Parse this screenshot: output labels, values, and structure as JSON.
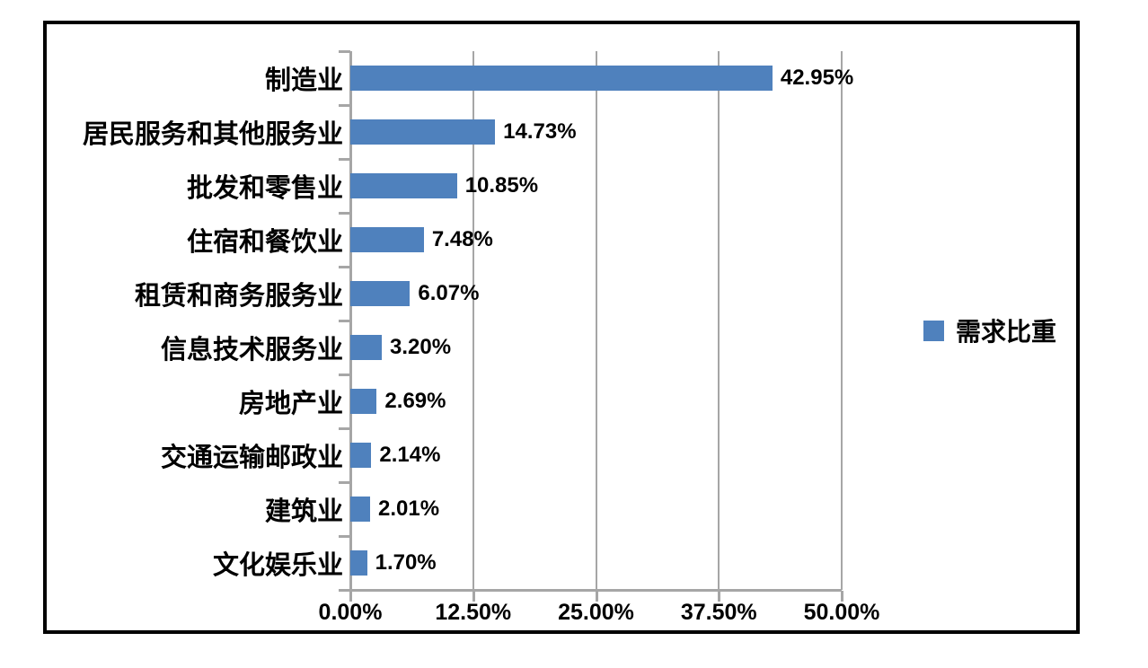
{
  "chart_data": {
    "type": "bar",
    "orientation": "horizontal",
    "title": "",
    "categories": [
      "制造业",
      "居民服务和其他服务业",
      "批发和零售业",
      "住宿和餐饮业",
      "租赁和商务服务业",
      "信息技术服务业",
      "房地产业",
      "交通运输邮政业",
      "建筑业",
      "文化娱乐业"
    ],
    "values": [
      42.95,
      14.73,
      10.85,
      7.48,
      6.07,
      3.2,
      2.69,
      2.14,
      2.01,
      1.7
    ],
    "value_labels": [
      "42.95%",
      "14.73%",
      "10.85%",
      "7.48%",
      "6.07%",
      "3.20%",
      "2.69%",
      "2.14%",
      "2.01%",
      "1.70%"
    ],
    "series": [
      {
        "name": "需求比重",
        "values": [
          42.95,
          14.73,
          10.85,
          7.48,
          6.07,
          3.2,
          2.69,
          2.14,
          2.01,
          1.7
        ]
      }
    ],
    "legend": {
      "label": "需求比重",
      "position": "right"
    },
    "x_axis": {
      "range": [
        0,
        50
      ],
      "tick_values": [
        0,
        12.5,
        25,
        37.5,
        50
      ],
      "tick_labels": [
        "0.00%",
        "12.50%",
        "25.00%",
        "37.50%",
        "50.00%"
      ]
    },
    "grid": true,
    "colors": {
      "bar": "#4f81bd",
      "axis": "#a6a6a6",
      "text": "#000000",
      "background": "#ffffff",
      "border": "#000000"
    }
  }
}
